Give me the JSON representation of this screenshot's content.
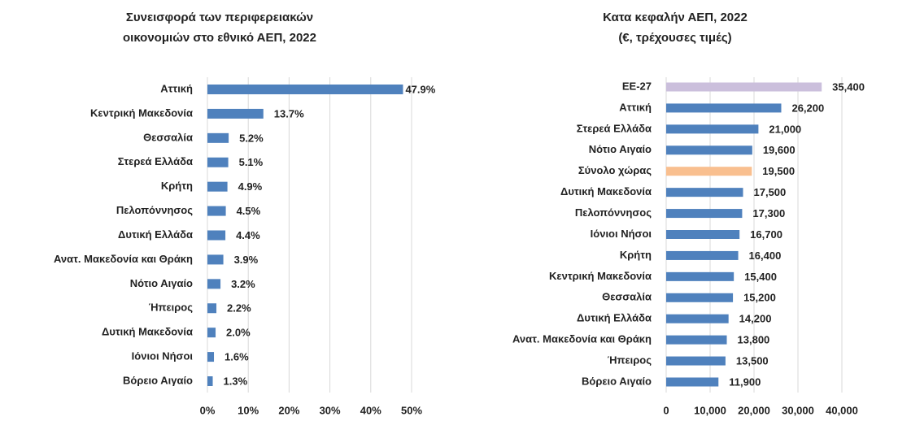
{
  "chart_data": [
    {
      "type": "bar",
      "orientation": "horizontal",
      "title": [
        "Συνεισφορά των περιφερειακών",
        "οικονομιών στο εθνικό ΑΕΠ, 2022"
      ],
      "categories": [
        "Αττική",
        "Κεντρική Μακεδονία",
        "Θεσσαλία",
        "Στερεά Ελλάδα",
        "Κρήτη",
        "Πελοπόννησος",
        "Δυτική Ελλάδα",
        "Ανατ. Μακεδονία και Θράκη",
        "Νότιο Αιγαίο",
        "Ήπειρος",
        "Δυτική Μακεδονία",
        "Ιόνιοι Νήσοι",
        "Βόρειο Αιγαίο"
      ],
      "values": [
        47.9,
        13.7,
        5.2,
        5.1,
        4.9,
        4.5,
        4.4,
        3.9,
        3.2,
        2.2,
        2.0,
        1.6,
        1.3
      ],
      "value_labels": [
        "47.9%",
        "13.7%",
        "5.2%",
        "5.1%",
        "4.9%",
        "4.5%",
        "4.4%",
        "3.9%",
        "3.2%",
        "2.2%",
        "2.0%",
        "1.6%",
        "1.3%"
      ],
      "colors": [
        "#4f81bd",
        "#4f81bd",
        "#4f81bd",
        "#4f81bd",
        "#4f81bd",
        "#4f81bd",
        "#4f81bd",
        "#4f81bd",
        "#4f81bd",
        "#4f81bd",
        "#4f81bd",
        "#4f81bd",
        "#4f81bd"
      ],
      "xlim": [
        0,
        50
      ],
      "xticks": [
        {
          "value": 0,
          "label": "0%"
        },
        {
          "value": 10,
          "label": "10%"
        },
        {
          "value": 20,
          "label": "20%"
        },
        {
          "value": 30,
          "label": "30%"
        },
        {
          "value": 40,
          "label": "40%"
        },
        {
          "value": 50,
          "label": "50%"
        }
      ],
      "grid": true
    },
    {
      "type": "bar",
      "orientation": "horizontal",
      "title": [
        "Κατα κεφαλήν ΑΕΠ, 2022",
        "(€, τρέχουσες τιμές)"
      ],
      "categories": [
        "ΕΕ-27",
        "Αττική",
        "Στερεά Ελλάδα",
        "Νότιο Αιγαίο",
        "Σύνολο χώρας",
        "Δυτική Μακεδονία",
        "Πελοπόννησος",
        "Ιόνιοι Νήσοι",
        "Κρήτη",
        "Κεντρική Μακεδονία",
        "Θεσσαλία",
        "Δυτική Ελλάδα",
        "Ανατ. Μακεδονία και Θράκη",
        "Ήπειρος",
        "Βόρειο Αιγαίο"
      ],
      "values": [
        35400,
        26200,
        21000,
        19600,
        19500,
        17500,
        17300,
        16700,
        16400,
        15400,
        15200,
        14200,
        13800,
        13500,
        11900
      ],
      "value_labels": [
        "35,400",
        "26,200",
        "21,000",
        "19,600",
        "19,500",
        "17,500",
        "17,300",
        "16,700",
        "16,400",
        "15,400",
        "15,200",
        "14,200",
        "13,800",
        "13,500",
        "11,900"
      ],
      "colors": [
        "#cbbfdc",
        "#4f81bd",
        "#4f81bd",
        "#4f81bd",
        "#f9bf8f",
        "#4f81bd",
        "#4f81bd",
        "#4f81bd",
        "#4f81bd",
        "#4f81bd",
        "#4f81bd",
        "#4f81bd",
        "#4f81bd",
        "#4f81bd",
        "#4f81bd"
      ],
      "xlim": [
        0,
        40000
      ],
      "xticks": [
        0,
        {
          "value": 10000,
          "label": "10,000"
        },
        {
          "value": 20000,
          "label": "20,000"
        },
        {
          "value": 30000,
          "label": "30,000"
        },
        {
          "value": 40000,
          "label": "40,000"
        }
      ],
      "grid": true
    }
  ]
}
